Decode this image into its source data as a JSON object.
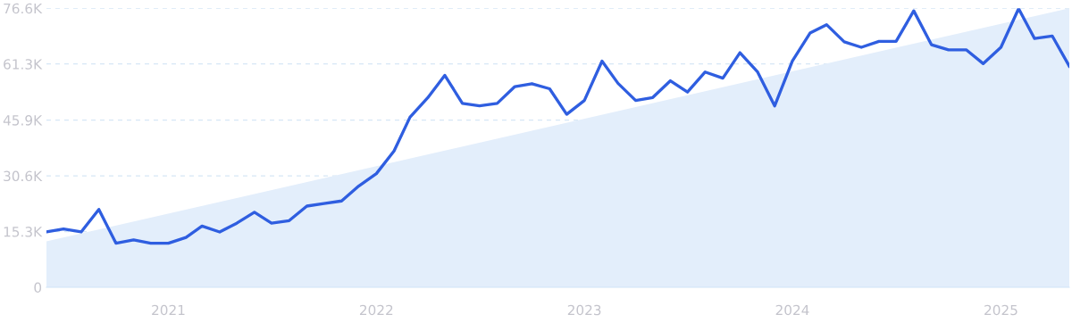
{
  "chart_data": {
    "type": "line",
    "x": [
      "2020-06",
      "2020-07",
      "2020-08",
      "2020-09",
      "2020-10",
      "2020-11",
      "2020-12",
      "2021-01",
      "2021-02",
      "2021-03",
      "2021-04",
      "2021-05",
      "2021-06",
      "2021-07",
      "2021-08",
      "2021-09",
      "2021-10",
      "2021-11",
      "2021-12",
      "2022-01",
      "2022-02",
      "2022-03",
      "2022-04",
      "2022-05",
      "2022-06",
      "2022-07",
      "2022-08",
      "2022-09",
      "2022-10",
      "2022-11",
      "2022-12",
      "2023-01",
      "2023-02",
      "2023-03",
      "2023-04",
      "2023-05",
      "2023-06",
      "2023-07",
      "2023-08",
      "2023-09",
      "2023-10",
      "2023-11",
      "2023-12",
      "2024-01",
      "2024-02",
      "2024-03",
      "2024-04",
      "2024-05",
      "2024-06",
      "2024-07",
      "2024-08",
      "2024-09",
      "2024-10",
      "2024-11",
      "2024-12",
      "2025-01",
      "2025-02",
      "2025-03",
      "2025-04",
      "2025-05"
    ],
    "series": [
      {
        "type": "area",
        "color": "#e3eefb",
        "x": [
          "2020-06",
          "2025-05"
        ],
        "values": [
          12.6,
          76.6
        ]
      },
      {
        "color": "#2f5ee0",
        "values": [
          15.2,
          16.0,
          15.2,
          21.4,
          12.1,
          13.0,
          12.1,
          12.1,
          13.7,
          16.8,
          15.2,
          17.6,
          20.6,
          17.6,
          18.3,
          22.3,
          23.0,
          23.7,
          27.8,
          31.2,
          37.4,
          46.7,
          52.0,
          58.2,
          50.5,
          49.8,
          50.5,
          55.1,
          55.9,
          54.5,
          47.5,
          51.3,
          62.1,
          56.0,
          51.3,
          52.1,
          56.7,
          53.6,
          59.1,
          57.4,
          64.4,
          59.1,
          49.8,
          62.1,
          69.8,
          72.1,
          67.4,
          65.9,
          67.5,
          67.5,
          75.9,
          66.6,
          65.2,
          65.2,
          61.4,
          65.9,
          76.5,
          68.3,
          69.0,
          60.7
        ]
      }
    ],
    "xlim": [
      "2020-06",
      "2025-05"
    ],
    "xticks": [
      {
        "value": "2021-01",
        "label": "2021"
      },
      {
        "value": "2022-01",
        "label": "2022"
      },
      {
        "value": "2023-01",
        "label": "2023"
      },
      {
        "value": "2024-01",
        "label": "2024"
      },
      {
        "value": "2025-01",
        "label": "2025"
      }
    ],
    "ylim": [
      0,
      76.6
    ],
    "yticks": [
      0,
      {
        "value": 15.3,
        "label": "15.3K"
      },
      {
        "value": 30.6,
        "label": "30.6K"
      },
      {
        "value": 45.9,
        "label": "45.9K"
      },
      {
        "value": 61.3,
        "label": "61.3K"
      },
      {
        "value": 76.6,
        "label": "76.6K"
      }
    ],
    "grid": "y",
    "line_style": "solid"
  }
}
